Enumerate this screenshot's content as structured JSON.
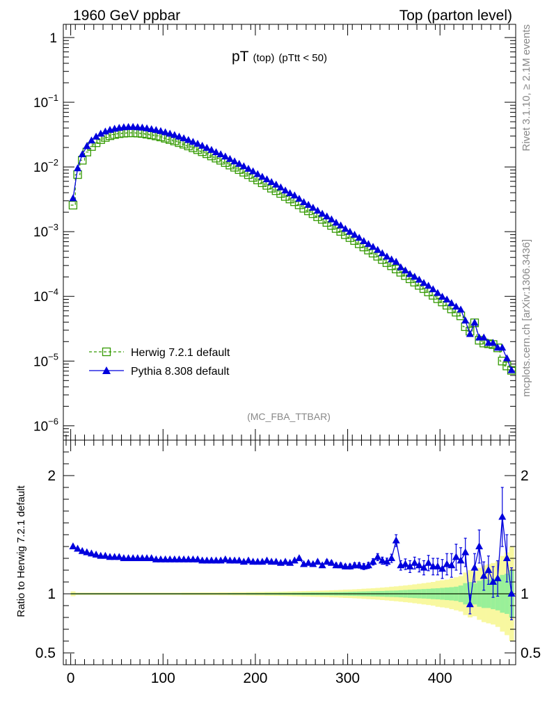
{
  "header": {
    "left": "1960 GeV ppbar",
    "right": "Top (parton level)"
  },
  "title": {
    "main": "pT",
    "sub1": "(top)",
    "sub2": "(pTtt < 50)"
  },
  "analysis_label": "(MC_FBA_TTBAR)",
  "side_labels": {
    "rivet": "Rivet 3.1.10, ≥ 2.1M events",
    "mcplots": "mcplots.cern.ch [arXiv:1306.3436]"
  },
  "ratio_ylabel": "Ratio to Herwig 7.2.1 default",
  "top_ticks": [
    {
      "exp": 0,
      "label": "1"
    },
    {
      "exp": -1,
      "base": "10",
      "sup": "−1"
    },
    {
      "exp": -2,
      "base": "10",
      "sup": "−2"
    },
    {
      "exp": -3,
      "base": "10",
      "sup": "−3"
    },
    {
      "exp": -4,
      "base": "10",
      "sup": "−4"
    },
    {
      "exp": -5,
      "base": "10",
      "sup": "−5"
    },
    {
      "exp": -6,
      "base": "10",
      "sup": "−6"
    }
  ],
  "ratio_ticks": [
    {
      "v": 2,
      "label": "2"
    },
    {
      "v": 1,
      "label": "1"
    },
    {
      "v": 0.5,
      "label": "0.5"
    }
  ],
  "x_ticks": [
    {
      "v": 0,
      "label": "0"
    },
    {
      "v": 100,
      "label": "100"
    },
    {
      "v": 200,
      "label": "200"
    },
    {
      "v": 300,
      "label": "300"
    },
    {
      "v": 400,
      "label": "400"
    }
  ],
  "colors": {
    "herwig": "#339900",
    "pythia": "#0000dd",
    "band_green": "#99f099",
    "band_yellow": "#f8f8a0"
  },
  "chart_data": {
    "type": "line",
    "x_range": [
      -8,
      482
    ],
    "top_y_log": true,
    "top_y_range": [
      6e-07,
      1.6
    ],
    "ratio_y_range": [
      0.4,
      2.3
    ],
    "grid": false,
    "legend_placement": "lower-left",
    "x": [
      2.5,
      7.5,
      12.5,
      17.5,
      22.5,
      27.5,
      32.5,
      37.5,
      42.5,
      47.5,
      52.5,
      57.5,
      62.5,
      67.5,
      72.5,
      77.5,
      82.5,
      87.5,
      92.5,
      97.5,
      102.5,
      107.5,
      112.5,
      117.5,
      122.5,
      127.5,
      132.5,
      137.5,
      142.5,
      147.5,
      152.5,
      157.5,
      162.5,
      167.5,
      172.5,
      177.5,
      182.5,
      187.5,
      192.5,
      197.5,
      202.5,
      207.5,
      212.5,
      217.5,
      222.5,
      227.5,
      232.5,
      237.5,
      242.5,
      247.5,
      252.5,
      257.5,
      262.5,
      267.5,
      272.5,
      277.5,
      282.5,
      287.5,
      292.5,
      297.5,
      302.5,
      307.5,
      312.5,
      317.5,
      322.5,
      327.5,
      332.5,
      337.5,
      342.5,
      347.5,
      352.5,
      357.5,
      362.5,
      367.5,
      372.5,
      377.5,
      382.5,
      387.5,
      392.5,
      397.5,
      402.5,
      407.5,
      412.5,
      417.5,
      422.5,
      427.5,
      432.5,
      437.5,
      442.5,
      447.5,
      452.5,
      457.5,
      462.5,
      467.5,
      472.5,
      477.5
    ],
    "series": [
      {
        "name": "Herwig 7.2.1 default",
        "values": [
          0.00257,
          0.00763,
          0.0127,
          0.017,
          0.0207,
          0.0237,
          0.0265,
          0.0286,
          0.0304,
          0.0317,
          0.0327,
          0.0333,
          0.0336,
          0.0337,
          0.0334,
          0.0329,
          0.0321,
          0.0312,
          0.0302,
          0.0291,
          0.0278,
          0.0265,
          0.0252,
          0.0238,
          0.0225,
          0.0211,
          0.0198,
          0.0185,
          0.0172,
          0.016,
          0.0148,
          0.0137,
          0.0127,
          0.0117,
          0.0107,
          0.0099,
          0.0091,
          0.0083,
          0.0076,
          0.0069,
          0.0063,
          0.0057,
          0.0052,
          0.0047,
          0.0043,
          0.0039,
          0.0035,
          0.0032,
          0.0029,
          0.0026,
          0.0023,
          0.0021,
          0.0019,
          0.0017,
          0.00155,
          0.00139,
          0.00125,
          0.00112,
          0.00101,
          0.0009,
          0.00081,
          0.00073,
          0.00065,
          0.00058,
          0.00052,
          0.000466,
          0.000417,
          0.000372,
          0.000332,
          0.000297,
          0.000265,
          0.000236,
          0.00021,
          0.000187,
          0.000166,
          0.000148,
          0.000132,
          0.000117,
          0.000104,
          9.2e-05,
          8.2e-05,
          7.3e-05,
          6.4e-05,
          5.7e-05,
          5e-05,
          3.4e-05,
          2.9e-05,
          3.9e-05,
          2.1e-05,
          1.9e-05,
          1.85e-05,
          1.8e-05,
          1.6e-05,
          1e-05,
          8.4e-06,
          7.2e-06
        ],
        "ratio": [
          1,
          1,
          1,
          1,
          1,
          1,
          1,
          1,
          1,
          1,
          1,
          1,
          1,
          1,
          1,
          1,
          1,
          1,
          1,
          1,
          1,
          1,
          1,
          1,
          1,
          1,
          1,
          1,
          1,
          1,
          1,
          1,
          1,
          1,
          1,
          1,
          1,
          1,
          1,
          1,
          1,
          1,
          1,
          1,
          1,
          1,
          1,
          1,
          1,
          1,
          1,
          1,
          1,
          1,
          1,
          1,
          1,
          1,
          1,
          1,
          1,
          1,
          1,
          1,
          1,
          1,
          1,
          1,
          1,
          1,
          1,
          1,
          1,
          1,
          1,
          1,
          1,
          1,
          1,
          1,
          1,
          1,
          1,
          1,
          1,
          1,
          1,
          1,
          1,
          1,
          1,
          1,
          1,
          1,
          1,
          1
        ],
        "band_green_halfwidth": [
          0.005,
          0.005,
          0.005,
          0.005,
          0.005,
          0.005,
          0.005,
          0.005,
          0.005,
          0.005,
          0.005,
          0.005,
          0.005,
          0.005,
          0.005,
          0.005,
          0.005,
          0.005,
          0.005,
          0.005,
          0.005,
          0.005,
          0.005,
          0.005,
          0.005,
          0.005,
          0.005,
          0.005,
          0.005,
          0.005,
          0.005,
          0.005,
          0.005,
          0.005,
          0.006,
          0.006,
          0.006,
          0.006,
          0.007,
          0.007,
          0.007,
          0.007,
          0.008,
          0.008,
          0.008,
          0.009,
          0.009,
          0.009,
          0.01,
          0.01,
          0.011,
          0.011,
          0.012,
          0.012,
          0.013,
          0.013,
          0.014,
          0.015,
          0.015,
          0.016,
          0.017,
          0.018,
          0.019,
          0.02,
          0.021,
          0.022,
          0.023,
          0.024,
          0.026,
          0.027,
          0.028,
          0.03,
          0.032,
          0.034,
          0.036,
          0.038,
          0.04,
          0.042,
          0.045,
          0.047,
          0.05,
          0.053,
          0.056,
          0.06,
          0.07,
          0.09,
          0.1,
          0.09,
          0.11,
          0.12,
          0.12,
          0.13,
          0.14,
          0.16,
          0.17,
          0.2
        ],
        "band_yellow_halfwidth": [
          0.02,
          0.01,
          0.01,
          0.01,
          0.01,
          0.01,
          0.01,
          0.01,
          0.01,
          0.01,
          0.01,
          0.01,
          0.01,
          0.01,
          0.01,
          0.01,
          0.01,
          0.01,
          0.01,
          0.01,
          0.01,
          0.01,
          0.01,
          0.01,
          0.011,
          0.011,
          0.011,
          0.011,
          0.012,
          0.012,
          0.012,
          0.012,
          0.013,
          0.013,
          0.013,
          0.014,
          0.014,
          0.014,
          0.015,
          0.015,
          0.016,
          0.016,
          0.017,
          0.017,
          0.018,
          0.018,
          0.019,
          0.02,
          0.021,
          0.022,
          0.023,
          0.024,
          0.025,
          0.026,
          0.027,
          0.028,
          0.03,
          0.031,
          0.033,
          0.035,
          0.036,
          0.038,
          0.04,
          0.043,
          0.045,
          0.047,
          0.05,
          0.053,
          0.056,
          0.06,
          0.063,
          0.067,
          0.071,
          0.075,
          0.08,
          0.085,
          0.09,
          0.095,
          0.1,
          0.11,
          0.115,
          0.12,
          0.13,
          0.14,
          0.15,
          0.18,
          0.2,
          0.19,
          0.22,
          0.24,
          0.25,
          0.26,
          0.28,
          0.32,
          0.35,
          0.4
        ]
      },
      {
        "name": "Pythia 8.308 default",
        "values": [
          0.00326,
          0.0095,
          0.0156,
          0.0209,
          0.0255,
          0.0292,
          0.0325,
          0.0351,
          0.0372,
          0.0388,
          0.04,
          0.0408,
          0.0412,
          0.0413,
          0.0409,
          0.0403,
          0.0394,
          0.0382,
          0.037,
          0.0356,
          0.0341,
          0.0325,
          0.0309,
          0.0292,
          0.0276,
          0.0259,
          0.0243,
          0.0227,
          0.0211,
          0.0196,
          0.0182,
          0.0168,
          0.0156,
          0.0144,
          0.0132,
          0.0121,
          0.0111,
          0.0102,
          0.0093,
          0.0085,
          0.0077,
          0.007,
          0.0064,
          0.0058,
          0.0053,
          0.0048,
          0.0043,
          0.0039,
          0.0036,
          0.0032,
          0.00284,
          0.00258,
          0.00233,
          0.0021,
          0.00188,
          0.00171,
          0.00154,
          0.00137,
          0.00124,
          0.0011,
          0.00099,
          0.00089,
          0.0008,
          0.00071,
          0.00064,
          0.00058,
          0.00052,
          0.00046,
          0.00041,
          0.00037,
          0.00034,
          0.00028,
          0.00025,
          0.00022,
          0.0002,
          0.00018,
          0.00016,
          0.000145,
          0.000128,
          0.000112,
          9.8e-05,
          8.9e-05,
          7.8e-05,
          6.9e-05,
          6.2e-05,
          4.2e-05,
          2.6e-05,
          3.9e-05,
          2.3e-05,
          2.3e-05,
          1.9e-05,
          1.9e-05,
          1.6e-05,
          1.6e-05,
          1.1e-05,
          7.2e-06
        ],
        "ratio": [
          1.4,
          1.38,
          1.36,
          1.35,
          1.34,
          1.33,
          1.32,
          1.32,
          1.31,
          1.31,
          1.31,
          1.3,
          1.3,
          1.3,
          1.3,
          1.3,
          1.3,
          1.3,
          1.29,
          1.29,
          1.29,
          1.29,
          1.29,
          1.29,
          1.29,
          1.29,
          1.29,
          1.29,
          1.28,
          1.28,
          1.28,
          1.28,
          1.28,
          1.29,
          1.28,
          1.28,
          1.28,
          1.27,
          1.28,
          1.27,
          1.27,
          1.27,
          1.28,
          1.27,
          1.27,
          1.26,
          1.27,
          1.26,
          1.28,
          1.3,
          1.25,
          1.26,
          1.25,
          1.27,
          1.24,
          1.27,
          1.26,
          1.24,
          1.24,
          1.23,
          1.23,
          1.24,
          1.24,
          1.23,
          1.24,
          1.27,
          1.31,
          1.28,
          1.27,
          1.3,
          1.45,
          1.24,
          1.25,
          1.23,
          1.26,
          1.24,
          1.22,
          1.26,
          1.23,
          1.23,
          1.21,
          1.25,
          1.24,
          1.31,
          1.28,
          1.35,
          0.91,
          1.22,
          1.4,
          1.15,
          1.2,
          1.1,
          1.13,
          1.65,
          1.3,
          1.0
        ],
        "ratio_err": [
          0.01,
          0.01,
          0.01,
          0.01,
          0.01,
          0.01,
          0.01,
          0.01,
          0.01,
          0.01,
          0.01,
          0.01,
          0.01,
          0.01,
          0.01,
          0.01,
          0.01,
          0.01,
          0.01,
          0.01,
          0.01,
          0.01,
          0.01,
          0.01,
          0.01,
          0.01,
          0.01,
          0.01,
          0.01,
          0.01,
          0.01,
          0.01,
          0.01,
          0.01,
          0.01,
          0.01,
          0.01,
          0.01,
          0.01,
          0.01,
          0.01,
          0.01,
          0.01,
          0.012,
          0.012,
          0.012,
          0.012,
          0.012,
          0.013,
          0.013,
          0.014,
          0.014,
          0.015,
          0.015,
          0.016,
          0.017,
          0.018,
          0.019,
          0.02,
          0.02,
          0.021,
          0.022,
          0.023,
          0.025,
          0.026,
          0.027,
          0.03,
          0.03,
          0.032,
          0.035,
          0.05,
          0.04,
          0.045,
          0.05,
          0.05,
          0.055,
          0.06,
          0.065,
          0.07,
          0.07,
          0.08,
          0.09,
          0.1,
          0.11,
          0.11,
          0.12,
          0.08,
          0.12,
          0.14,
          0.12,
          0.12,
          0.13,
          0.15,
          0.25,
          0.2,
          0.22
        ]
      }
    ]
  }
}
